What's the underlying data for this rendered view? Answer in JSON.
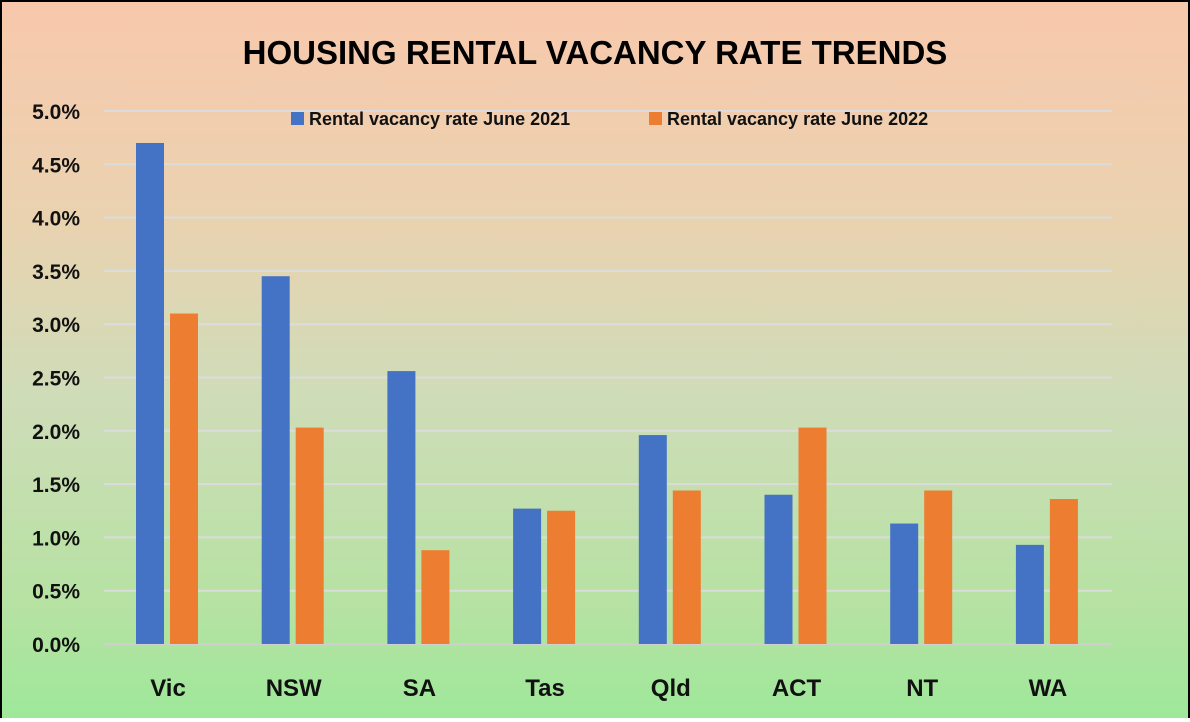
{
  "chart_data": {
    "type": "bar",
    "title": "HOUSING RENTAL VACANCY RATE TRENDS",
    "xlabel": "",
    "ylabel": "",
    "categories": [
      "Vic",
      "NSW",
      "SA",
      "Tas",
      "Qld",
      "ACT",
      "NT",
      "WA"
    ],
    "series": [
      {
        "name": "Rental vacancy rate June 2021",
        "color": "#4472c4",
        "values": [
          4.7,
          3.45,
          2.56,
          1.27,
          1.96,
          1.4,
          1.13,
          0.93
        ]
      },
      {
        "name": "Rental vacancy rate June 2022",
        "color": "#ed7d31",
        "values": [
          3.1,
          2.03,
          0.88,
          1.25,
          1.44,
          2.03,
          1.44,
          1.36
        ]
      }
    ],
    "ylim": [
      0,
      5
    ],
    "yticks": [
      "0.0%",
      "0.5%",
      "1.0%",
      "1.5%",
      "2.0%",
      "2.5%",
      "3.0%",
      "3.5%",
      "4.0%",
      "4.5%",
      "5.0%"
    ],
    "grid": true,
    "legend": "top"
  }
}
